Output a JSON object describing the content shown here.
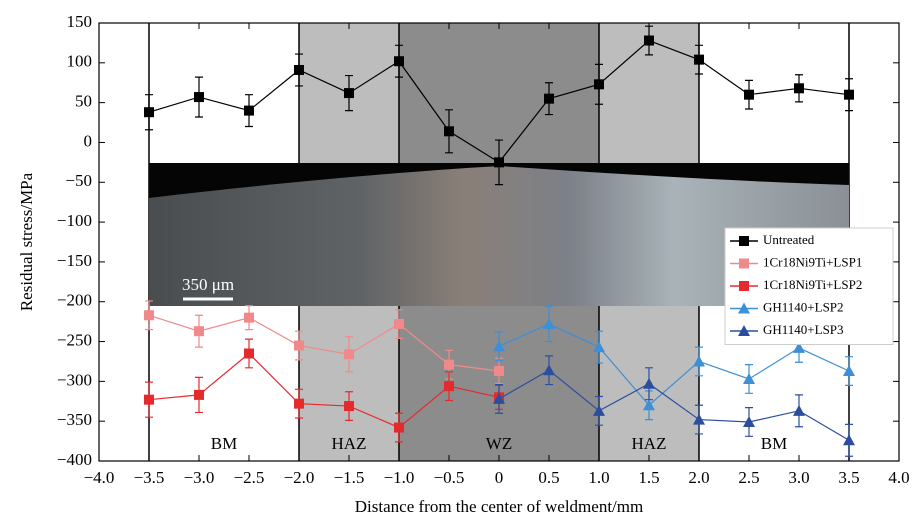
{
  "chart_data": {
    "type": "line",
    "xlabel": "Distance from the center of weldment/mm",
    "ylabel": "Residual stress/MPa",
    "xlim": [
      -4,
      4
    ],
    "ylim": [
      -400,
      150
    ],
    "xticks": [
      {
        "value": -4,
        "label": "−4.0"
      },
      {
        "value": -3.5,
        "label": "−3.5"
      },
      {
        "value": -3,
        "label": "−3.0"
      },
      {
        "value": -2.5,
        "label": "−2.5"
      },
      {
        "value": -2,
        "label": "−2.0"
      },
      {
        "value": -1.5,
        "label": "−1.5"
      },
      {
        "value": -1,
        "label": "−1.0"
      },
      {
        "value": -0.5,
        "label": "−0.5"
      },
      0,
      0.5,
      {
        "value": 1,
        "label": "1.0"
      },
      1.5,
      {
        "value": 2,
        "label": "2.0"
      },
      2.5,
      {
        "value": 3,
        "label": "3.0"
      },
      3.5,
      {
        "value": 4,
        "label": "4.0"
      }
    ],
    "yticks": [
      {
        "value": -400,
        "label": "−400"
      },
      {
        "value": -350,
        "label": "−350"
      },
      {
        "value": -300,
        "label": "−300"
      },
      {
        "value": -250,
        "label": "−250"
      },
      {
        "value": -200,
        "label": "−200"
      },
      {
        "value": -150,
        "label": "−150"
      },
      {
        "value": -100,
        "label": "−100"
      },
      {
        "value": -50,
        "label": "−50"
      },
      0,
      50,
      100,
      150
    ],
    "regions": [
      {
        "name": "BM",
        "from": -3.5,
        "to": -2,
        "color": "#ffffff"
      },
      {
        "name": "HAZ",
        "from": -2,
        "to": -1,
        "color": "#bdbdbd"
      },
      {
        "name": "WZ",
        "from": -1,
        "to": 1,
        "color": "#8c8c8c"
      },
      {
        "name": "HAZ",
        "from": 1,
        "to": 2,
        "color": "#bdbdbd"
      },
      {
        "name": "BM",
        "from": 2,
        "to": 3.5,
        "color": "#ffffff"
      }
    ],
    "scale_bar": "350 μm",
    "legend": "lower right",
    "series": [
      {
        "name": "Untreated",
        "color": "#000000",
        "marker": "square",
        "x": [
          -3.5,
          -3,
          -2.5,
          -2,
          -1.5,
          -1,
          -0.5,
          0,
          0.5,
          1,
          1.5,
          2,
          2.5,
          3,
          3.5
        ],
        "values": [
          38,
          57,
          40,
          91,
          62,
          102,
          14,
          -25,
          55,
          73,
          128,
          104,
          60,
          68,
          60
        ],
        "errors": [
          22,
          25,
          20,
          20,
          22,
          20,
          27,
          28,
          20,
          25,
          18,
          18,
          18,
          17,
          20
        ]
      },
      {
        "name": "1Cr18Ni9Ti+LSP1",
        "color": "#f08a8a",
        "marker": "square",
        "x": [
          -3.5,
          -3,
          -2.5,
          -2,
          -1.5,
          -1,
          -0.5,
          0
        ],
        "values": [
          -217,
          -237,
          -220,
          -255,
          -266,
          -228,
          -279,
          -287
        ],
        "errors": [
          18,
          20,
          15,
          18,
          22,
          18,
          18,
          16
        ]
      },
      {
        "name": "1Cr18Ni9Ti+LSP2",
        "color": "#e52a2e",
        "marker": "square",
        "x": [
          -3.5,
          -3,
          -2.5,
          -2,
          -1.5,
          -1,
          -0.5,
          0
        ],
        "values": [
          -323,
          -317,
          -265,
          -328,
          -331,
          -358,
          -306,
          -320
        ],
        "errors": [
          22,
          22,
          18,
          18,
          18,
          18,
          18,
          15
        ]
      },
      {
        "name": "GH1140+LSP2",
        "color": "#3d8fd6",
        "marker": "triangle",
        "x": [
          0,
          0.5,
          1,
          1.5,
          2,
          2.5,
          3,
          3.5
        ],
        "values": [
          -256,
          -228,
          -257,
          -330,
          -275,
          -297,
          -258,
          -287
        ],
        "errors": [
          18,
          22,
          20,
          18,
          18,
          18,
          18,
          18
        ]
      },
      {
        "name": "GH1140+LSP3",
        "color": "#2b4f9e",
        "marker": "triangle",
        "x": [
          0,
          0.5,
          1,
          1.5,
          2,
          2.5,
          3,
          3.5
        ],
        "values": [
          -322,
          -286,
          -337,
          -303,
          -348,
          -351,
          -337,
          -374
        ],
        "errors": [
          18,
          18,
          18,
          20,
          18,
          18,
          20,
          20
        ]
      }
    ]
  }
}
